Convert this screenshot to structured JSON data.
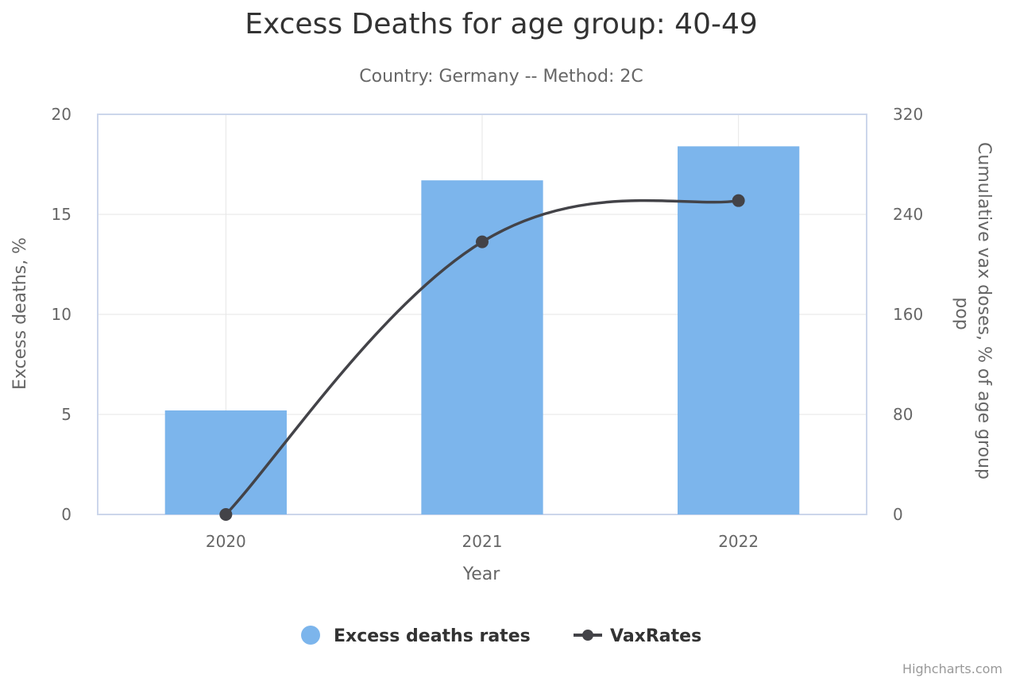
{
  "chart_data": {
    "type": "bar",
    "title": "Excess Deaths for age group: 40-49",
    "subtitle": "Country: Germany -- Method: 2C",
    "xlabel": "Year",
    "ylabel": "Excess deaths, %",
    "y2label": "Cumulative vax doses, % of age group pop",
    "categories": [
      "2020",
      "2021",
      "2022"
    ],
    "ylim": [
      0,
      20
    ],
    "y2lim": [
      0,
      320
    ],
    "yticks": [
      "0",
      "5",
      "10",
      "15",
      "20"
    ],
    "y2ticks": [
      "0",
      "80",
      "160",
      "240",
      "320"
    ],
    "grid": true,
    "legend_position": "bottom-center",
    "series": [
      {
        "name": "Excess deaths rates",
        "type": "bar",
        "axis": "left",
        "color": "#7cb5ec",
        "values": [
          5.2,
          16.7,
          18.4
        ]
      },
      {
        "name": "VaxRates",
        "type": "line",
        "axis": "right",
        "color": "#434348",
        "values": [
          0,
          218,
          251
        ]
      }
    ]
  },
  "credits": "Highcharts.com"
}
